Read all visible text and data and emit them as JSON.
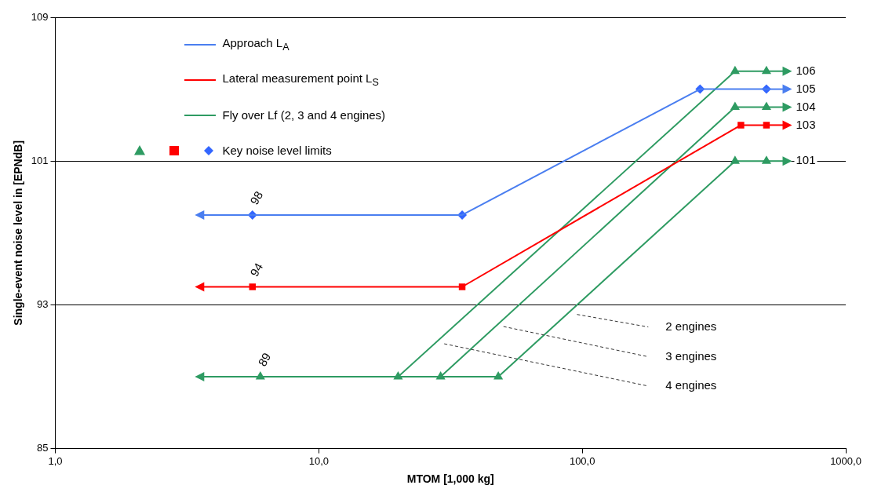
{
  "chart_data": {
    "type": "line",
    "xlabel": "MTOM [1,000 kg]",
    "ylabel": "Single-event noise level in [EPNdB]",
    "log": "x",
    "grid": "y",
    "legend": "top left",
    "line_style": "solid",
    "xlim": [
      1,
      1000
    ],
    "xticks": [
      {
        "value": 1,
        "label": "1,0"
      },
      {
        "value": 10,
        "label": "10,0"
      },
      {
        "value": 100,
        "label": "100,0"
      },
      {
        "value": 1000,
        "label": "1000,0"
      }
    ],
    "ylim": [
      85,
      109
    ],
    "yticks": [
      85,
      93,
      101,
      109
    ],
    "series": [
      {
        "name": "Approach L$_{A}$",
        "color": "#4a7ef0",
        "x": [
          5.6,
          35,
          280,
          500
        ],
        "values": [
          98,
          98,
          105,
          105
        ],
        "value_labels": [
          null,
          null,
          null,
          "105"
        ]
      },
      {
        "name": "Lateral measurement point L$_{S}$",
        "color": "#ff0000",
        "x": [
          5.6,
          35,
          400,
          500
        ],
        "values": [
          94,
          94,
          103,
          103
        ],
        "value_labels": [
          null,
          null,
          null,
          "103"
        ]
      },
      {
        "name": "Fly over Lf (2, 3 and 4 engines)",
        "color": "#2e9b62",
        "x": [
          6,
          48
        ],
        "values": [
          89,
          89
        ]
      },
      {
        "color": "#2e9b62",
        "x": [
          20,
          380,
          500
        ],
        "values": [
          89,
          106,
          106
        ],
        "value_labels": [
          null,
          null,
          "106"
        ]
      },
      {
        "color": "#2e9b62",
        "x": [
          29,
          380,
          500
        ],
        "values": [
          89,
          104,
          104
        ],
        "value_labels": [
          null,
          null,
          "104"
        ]
      },
      {
        "color": "#2e9b62",
        "x": [
          48,
          380,
          500
        ],
        "values": [
          89,
          101,
          101
        ],
        "value_labels": [
          null,
          null,
          "101"
        ]
      },
      {
        "type": "scatter",
        "marker": "triangle",
        "color": "#2e9b62",
        "x": [
          6,
          20,
          29,
          48,
          380,
          500,
          380,
          500,
          380,
          500
        ],
        "values": [
          89,
          89,
          89,
          89,
          106,
          106,
          104,
          104,
          101,
          101
        ],
        "value_labels": [
          "89",
          null,
          null,
          null,
          null,
          null,
          null,
          null,
          null,
          null
        ]
      },
      {
        "type": "scatter",
        "marker": "square",
        "color": "#ff0000",
        "x": [
          5.6,
          35,
          400,
          500
        ],
        "values": [
          94,
          94,
          103,
          103
        ],
        "value_labels": [
          "94",
          null,
          null,
          null
        ]
      },
      {
        "name": "Key noise level limits",
        "type": "scatter",
        "marker": "diamond",
        "color": "#3366ff",
        "x": [
          5.6,
          35,
          280,
          500
        ],
        "values": [
          98,
          98,
          105,
          105
        ],
        "value_labels": [
          "98",
          null,
          null,
          null
        ]
      }
    ],
    "annotations": [
      "2 engines",
      "3 engines",
      "4 engines"
    ]
  }
}
